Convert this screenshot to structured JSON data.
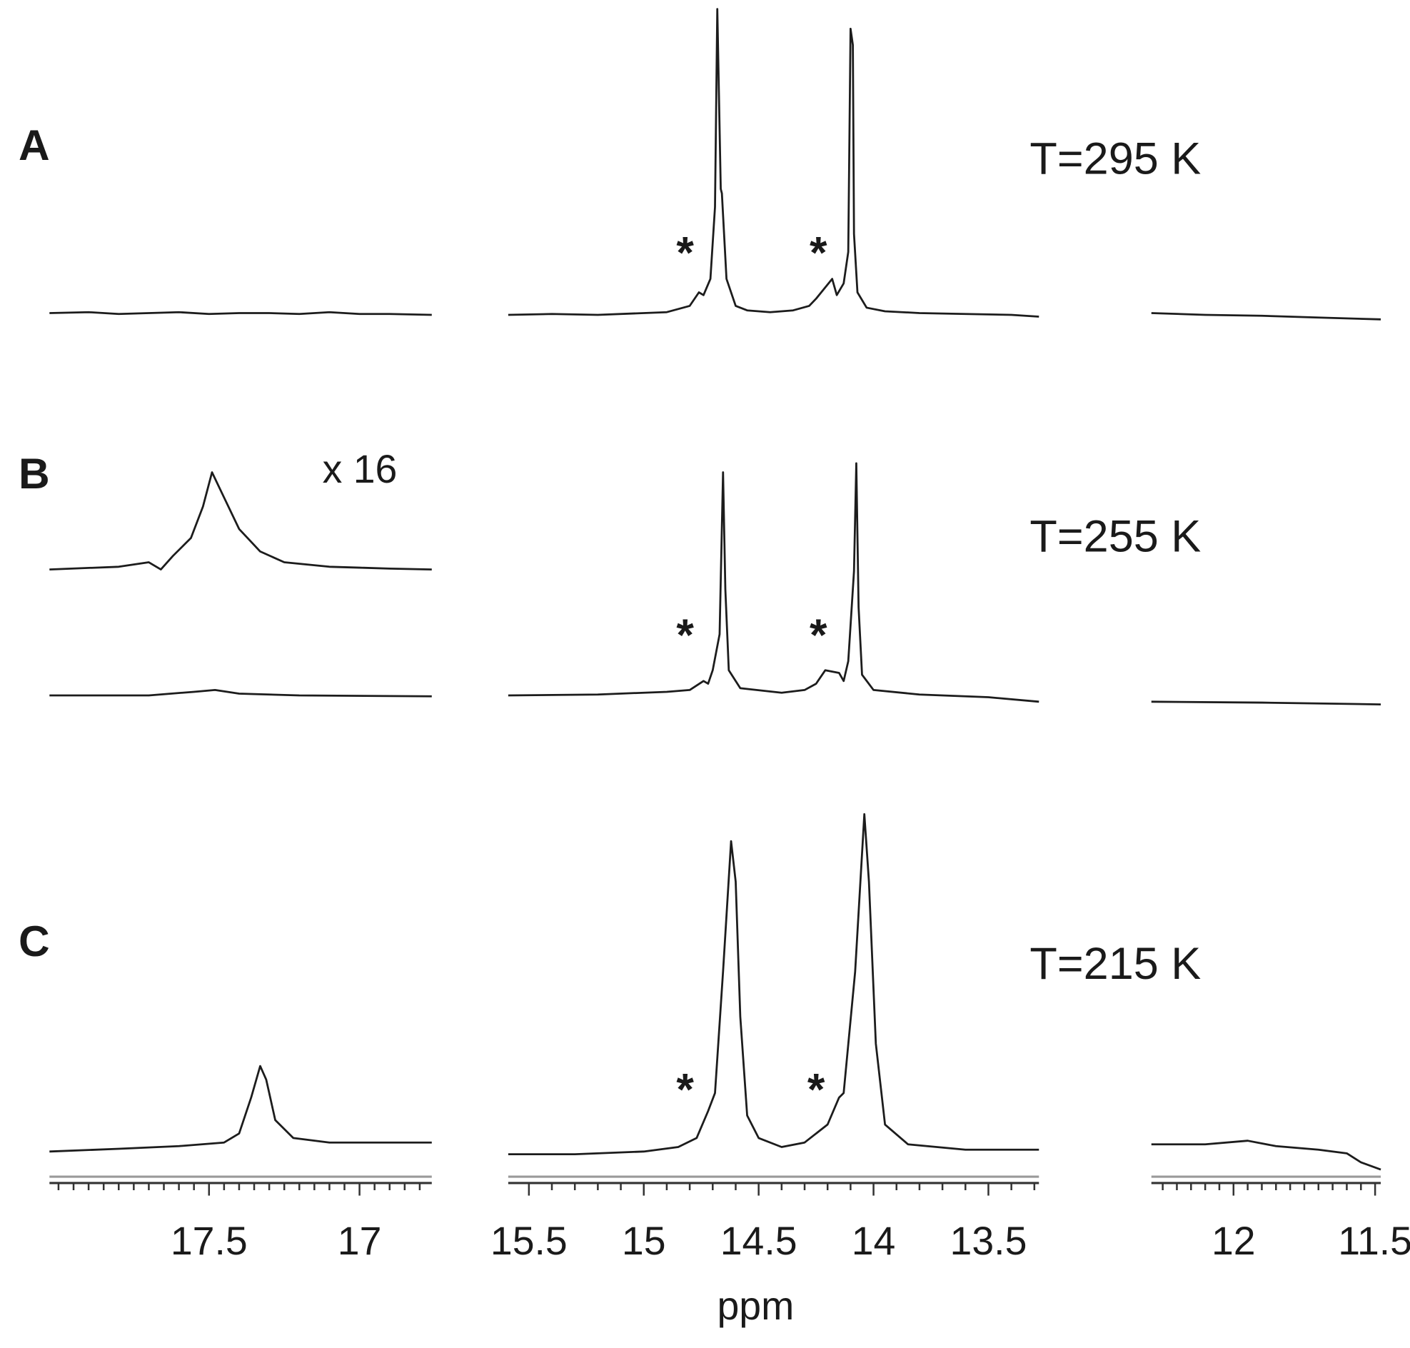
{
  "chart_data": {
    "type": "line",
    "xlabel": "ppm",
    "ylim": [
      0,
      400
    ],
    "axes": [
      {
        "xlim": [
          18.03,
          16.76
        ],
        "xticks": [
          17.5,
          17.0
        ],
        "xminor": [
          18.0,
          17.95,
          17.9,
          17.85,
          17.8,
          17.75,
          17.7,
          17.65,
          17.6,
          17.55,
          17.45,
          17.4,
          17.35,
          17.3,
          17.25,
          17.2,
          17.15,
          17.1,
          17.05,
          16.95,
          16.9,
          16.85,
          16.8
        ]
      },
      {
        "xlim": [
          15.59,
          13.28
        ],
        "xticks": [
          15.5,
          15.0,
          14.5,
          14.0,
          13.5
        ],
        "xminor": [
          15.4,
          15.3,
          15.2,
          15.1,
          14.9,
          14.8,
          14.7,
          14.6,
          14.4,
          14.3,
          14.2,
          14.1,
          13.9,
          13.8,
          13.7,
          13.6,
          13.4,
          13.3
        ]
      },
      {
        "xlim": [
          12.29,
          11.48
        ],
        "xticks": [
          12.0,
          11.5
        ],
        "xminor": [
          12.25,
          12.2,
          12.15,
          12.1,
          12.05,
          11.95,
          11.9,
          11.85,
          11.8,
          11.75,
          11.7,
          11.65,
          11.6,
          11.55
        ]
      }
    ],
    "panels": [
      {
        "label": "A",
        "temperature": "T=295 K",
        "segments": [
          {
            "x": [
              18.03,
              17.9,
              17.8,
              17.7,
              17.6,
              17.5,
              17.4,
              17.3,
              17.2,
              17.1,
              17.0,
              16.9,
              16.76
            ],
            "values": [
              2,
              3,
              1,
              2,
              3,
              1,
              2,
              2,
              1,
              3,
              1,
              1,
              0
            ]
          },
          {
            "x": [
              15.59,
              15.4,
              15.2,
              15.0,
              14.9,
              14.8,
              14.76,
              14.74,
              14.71,
              14.69,
              14.68,
              14.665,
              14.66,
              14.64,
              14.6,
              14.55,
              14.45,
              14.35,
              14.28,
              14.25,
              14.18,
              14.16,
              14.13,
              14.11,
              14.1,
              14.09,
              14.085,
              14.07,
              14.03,
              13.95,
              13.8,
              13.6,
              13.4,
              13.28
            ],
            "values": [
              0,
              1,
              0,
              2,
              3,
              10,
              25,
              22,
              40,
              120,
              340,
              140,
              135,
              40,
              10,
              5,
              3,
              5,
              10,
              18,
              40,
              22,
              35,
              70,
              318,
              300,
              90,
              25,
              8,
              4,
              2,
              1,
              0,
              -2
            ]
          },
          {
            "x": [
              12.29,
              12.1,
              11.9,
              11.7,
              11.48
            ],
            "values": [
              2,
              0,
              -1,
              -3,
              -5
            ]
          }
        ],
        "annotations": [
          {
            "text": "*",
            "x": 14.82
          },
          {
            "text": "*",
            "x": 14.24
          }
        ]
      },
      {
        "label": "B",
        "temperature": "T=255 K",
        "segments": [
          {
            "x": [
              18.03,
              17.7,
              17.55,
              17.48,
              17.4,
              17.2,
              16.76
            ],
            "values": [
              2,
              2,
              6,
              8,
              4,
              2,
              1
            ],
            "scaled_trace": {
              "label": "x 16",
              "x": [
                18.03,
                17.8,
                17.7,
                17.66,
                17.62,
                17.56,
                17.52,
                17.49,
                17.45,
                17.4,
                17.33,
                17.25,
                17.1,
                17.0,
                16.9,
                16.76
              ],
              "values": [
                0,
                3,
                8,
                0,
                15,
                35,
                70,
                108,
                80,
                45,
                20,
                8,
                3,
                2,
                1,
                0
              ]
            }
          },
          {
            "x": [
              15.59,
              15.2,
              14.9,
              14.8,
              14.74,
              14.72,
              14.7,
              14.67,
              14.655,
              14.645,
              14.63,
              14.58,
              14.4,
              14.3,
              14.25,
              14.21,
              14.15,
              14.13,
              14.11,
              14.085,
              14.075,
              14.065,
              14.05,
              14.0,
              13.8,
              13.5,
              13.28
            ],
            "values": [
              2,
              3,
              6,
              8,
              18,
              15,
              30,
              70,
              250,
              120,
              30,
              10,
              5,
              8,
              15,
              30,
              27,
              18,
              40,
              140,
              260,
              100,
              25,
              8,
              3,
              0,
              -5
            ]
          },
          {
            "x": [
              12.29,
              11.9,
              11.48
            ],
            "values": [
              -5,
              -6,
              -8
            ]
          }
        ],
        "annotations": [
          {
            "text": "*",
            "x": 14.82
          },
          {
            "text": "*",
            "x": 14.24
          }
        ]
      },
      {
        "label": "C",
        "temperature": "T=215 K",
        "segments": [
          {
            "x": [
              18.03,
              17.8,
              17.6,
              17.45,
              17.4,
              17.36,
              17.33,
              17.31,
              17.28,
              17.22,
              17.1,
              16.9,
              16.76
            ],
            "values": [
              0,
              3,
              6,
              10,
              20,
              60,
              95,
              80,
              35,
              15,
              10,
              10,
              10
            ]
          },
          {
            "x": [
              15.59,
              15.3,
              15.0,
              14.85,
              14.77,
              14.72,
              14.69,
              14.655,
              14.62,
              14.6,
              14.58,
              14.55,
              14.5,
              14.4,
              14.3,
              14.2,
              14.15,
              14.13,
              14.08,
              14.04,
              14.02,
              13.99,
              13.95,
              13.85,
              13.6,
              13.28
            ],
            "values": [
              -3,
              -3,
              0,
              5,
              15,
              45,
              65,
              200,
              345,
              300,
              150,
              40,
              15,
              5,
              10,
              30,
              60,
              65,
              200,
              375,
              300,
              120,
              30,
              8,
              2,
              2
            ]
          },
          {
            "x": [
              12.29,
              12.1,
              11.95,
              11.85,
              11.7,
              11.6,
              11.55,
              11.48
            ],
            "values": [
              8,
              8,
              12,
              6,
              2,
              -2,
              -12,
              -20
            ]
          }
        ],
        "annotations": [
          {
            "text": "*",
            "x": 14.82
          },
          {
            "text": "*",
            "x": 14.25
          }
        ]
      }
    ]
  }
}
